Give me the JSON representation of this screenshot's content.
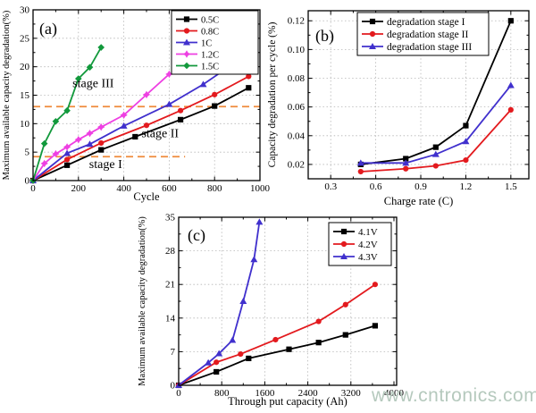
{
  "watermark": {
    "text": "www.cntronics.com",
    "color": "#b5c9bd"
  },
  "chart_data": [
    {
      "id": "a",
      "type": "line",
      "panel_label": "(a)",
      "xlabel": "Cycle",
      "ylabel": "Maximum available capacity degradation(%)",
      "xlim": [
        0,
        1000
      ],
      "ylim": [
        0,
        30
      ],
      "xticks": [
        0,
        200,
        400,
        600,
        800,
        1000
      ],
      "xtick_labels": [
        "0",
        "200",
        "400",
        "600",
        "800",
        "1000"
      ],
      "yticks": [
        0,
        5,
        10,
        15,
        20,
        25,
        30
      ],
      "ytick_labels": [
        "0",
        "5",
        "10",
        "15",
        "20",
        "25",
        "30"
      ],
      "grid": true,
      "legend_position": "top-right",
      "series": [
        {
          "name": "0.5C",
          "color": "#000000",
          "marker": "square",
          "x": [
            0,
            150,
            300,
            450,
            650,
            800,
            950
          ],
          "y": [
            0,
            2.7,
            5.4,
            7.7,
            10.7,
            13.1,
            16.3
          ]
        },
        {
          "name": "0.8C",
          "color": "#e31a1e",
          "marker": "circle",
          "x": [
            0,
            150,
            300,
            500,
            650,
            800,
            950
          ],
          "y": [
            0,
            3.7,
            6.6,
            9.7,
            12.3,
            15.1,
            18.3
          ]
        },
        {
          "name": "1C",
          "color": "#4030cd",
          "marker": "triangle",
          "x": [
            0,
            150,
            250,
            400,
            600,
            750,
            900
          ],
          "y": [
            0,
            4.8,
            6.4,
            9.6,
            13.4,
            16.9,
            21.0
          ]
        },
        {
          "name": "1.2C",
          "color": "#ee3fe2",
          "marker": "star",
          "x": [
            0,
            50,
            100,
            150,
            200,
            250,
            300,
            400,
            500,
            600
          ],
          "y": [
            0,
            3.0,
            4.7,
            5.9,
            7.2,
            8.3,
            9.4,
            11.5,
            15.1,
            18.7
          ]
        },
        {
          "name": "1.5C",
          "color": "#12993c",
          "marker": "diamond",
          "x": [
            0,
            50,
            100,
            150,
            200,
            250,
            300
          ],
          "y": [
            0,
            6.5,
            10.4,
            12.3,
            17.9,
            19.9,
            23.4
          ]
        }
      ],
      "reference_lines": [
        {
          "y": 4.2,
          "x_start": 0,
          "x_end": 670,
          "color": "#ef8a3a",
          "style": "dashed"
        },
        {
          "y": 13.0,
          "x_start": 0,
          "x_end": 1000,
          "color": "#ef8a3a",
          "style": "dashed"
        }
      ],
      "annotations": [
        {
          "text": "stage I",
          "x": 320,
          "y": 2.2
        },
        {
          "text": "stage II",
          "x": 560,
          "y": 7.6
        },
        {
          "text": "stage III",
          "x": 265,
          "y": 16.4
        }
      ]
    },
    {
      "id": "b",
      "type": "line",
      "panel_label": "(b)",
      "xlabel": "Charge rate (C)",
      "ylabel": "Capacity degradation per cycle (%)",
      "xlim": [
        0.15,
        1.62
      ],
      "ylim": [
        0.01,
        0.127
      ],
      "xticks": [
        0.3,
        0.6,
        0.9,
        1.2,
        1.5
      ],
      "xtick_labels": [
        "0.3",
        "0.6",
        "0.9",
        "1.2",
        "1.5"
      ],
      "yticks": [
        0.02,
        0.04,
        0.06,
        0.08,
        0.1,
        0.12
      ],
      "ytick_labels": [
        "0.02",
        "0.04",
        "0.06",
        "0.08",
        "0.10",
        "0.12"
      ],
      "grid": true,
      "legend_position": "top-center",
      "series": [
        {
          "name": "degradation stage I",
          "color": "#000000",
          "marker": "square",
          "x": [
            0.5,
            0.8,
            1.0,
            1.2,
            1.5
          ],
          "y": [
            0.02,
            0.024,
            0.032,
            0.047,
            0.12
          ]
        },
        {
          "name": "degradation stage II",
          "color": "#e31a1e",
          "marker": "circle",
          "x": [
            0.5,
            0.8,
            1.0,
            1.2,
            1.5
          ],
          "y": [
            0.015,
            0.017,
            0.019,
            0.023,
            0.058
          ]
        },
        {
          "name": "degradation stage III",
          "color": "#4030cd",
          "marker": "triangle",
          "x": [
            0.5,
            0.8,
            1.0,
            1.2,
            1.5
          ],
          "y": [
            0.021,
            0.021,
            0.027,
            0.036,
            0.075
          ]
        }
      ],
      "reference_lines": [],
      "annotations": []
    },
    {
      "id": "c",
      "type": "line",
      "panel_label": "(c)",
      "xlabel": "Through put capacity (Ah)",
      "ylabel": "Maximum available capacity degradation(%)",
      "xlim": [
        0,
        4050
      ],
      "ylim": [
        0,
        35
      ],
      "xticks": [
        0,
        800,
        1600,
        2400,
        3200,
        4000
      ],
      "xtick_labels": [
        "0",
        "800",
        "1600",
        "2400",
        "3200",
        "4000"
      ],
      "yticks": [
        0,
        7,
        14,
        21,
        28,
        35
      ],
      "ytick_labels": [
        "0",
        "7",
        "14",
        "21",
        "28",
        "35"
      ],
      "grid": true,
      "legend_position": "top-right",
      "series": [
        {
          "name": "4.1V",
          "color": "#000000",
          "marker": "square",
          "x": [
            0,
            700,
            1300,
            2050,
            2600,
            3100,
            3650
          ],
          "y": [
            0,
            2.8,
            5.6,
            7.5,
            8.9,
            10.5,
            12.4
          ]
        },
        {
          "name": "4.2V",
          "color": "#e31a1e",
          "marker": "circle",
          "x": [
            0,
            700,
            1150,
            1800,
            2600,
            3100,
            3650
          ],
          "y": [
            0,
            4.8,
            6.5,
            9.5,
            13.3,
            16.8,
            21.0
          ]
        },
        {
          "name": "4.3V",
          "color": "#4030cd",
          "marker": "triangle",
          "x": [
            0,
            550,
            750,
            1000,
            1200,
            1400,
            1500
          ],
          "y": [
            0,
            4.7,
            6.6,
            9.4,
            17.5,
            26.2,
            34.0
          ]
        }
      ],
      "reference_lines": [],
      "annotations": []
    }
  ]
}
